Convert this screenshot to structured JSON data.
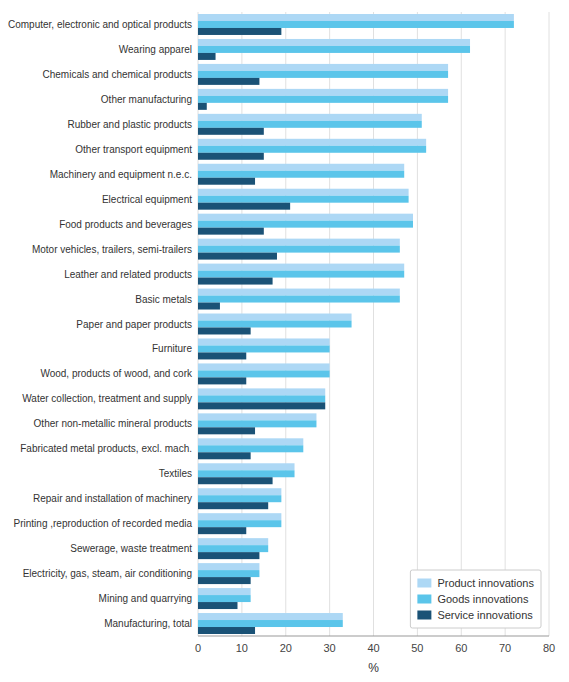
{
  "chart_data": {
    "type": "bar",
    "orientation": "horizontal",
    "categories": [
      "Computer, electronic and optical products",
      "Wearing apparel",
      "Chemicals and chemical products",
      "Other manufacturing",
      "Rubber and plastic products",
      "Other transport equipment",
      "Machinery and equipment n.e.c.",
      "Electrical equipment",
      "Food products and beverages",
      "Motor vehicles, trailers, semi-trailers",
      "Leather and related products",
      "Basic metals",
      "Paper and paper products",
      "Furniture",
      "Wood, products of wood, and cork",
      "Water collection, treatment and supply",
      "Other non-metallic mineral products",
      "Fabricated metal products, excl. mach.",
      "Textiles",
      "Repair and installation of machinery",
      "Printing ,reproduction of recorded media",
      "Sewerage, waste treatment",
      "Electricity, gas, steam, air conditioning",
      "Mining and quarrying",
      "Manufacturing, total"
    ],
    "series": [
      {
        "name": "Product innovations",
        "color": "#add8f5",
        "values": [
          72,
          62,
          57,
          57,
          51,
          52,
          47,
          48,
          49,
          46,
          47,
          46,
          35,
          30,
          30,
          29,
          27,
          24,
          22,
          19,
          19,
          16,
          14,
          12,
          33
        ]
      },
      {
        "name": "Goods innovations",
        "color": "#5bc5ea",
        "values": [
          72,
          62,
          57,
          57,
          51,
          52,
          47,
          48,
          49,
          46,
          47,
          46,
          35,
          30,
          30,
          29,
          27,
          24,
          22,
          19,
          19,
          16,
          14,
          12,
          33
        ]
      },
      {
        "name": "Service innovations",
        "color": "#1a5276",
        "values": [
          19,
          4,
          14,
          2,
          15,
          15,
          13,
          21,
          15,
          18,
          17,
          5,
          12,
          11,
          11,
          29,
          13,
          12,
          17,
          16,
          11,
          14,
          12,
          9,
          13
        ]
      }
    ],
    "xlabel": "%",
    "xlim": [
      0,
      80
    ],
    "xticks": [
      0,
      10,
      20,
      30,
      40,
      50,
      60,
      70,
      80
    ],
    "grid": true,
    "legend": "lower right"
  }
}
